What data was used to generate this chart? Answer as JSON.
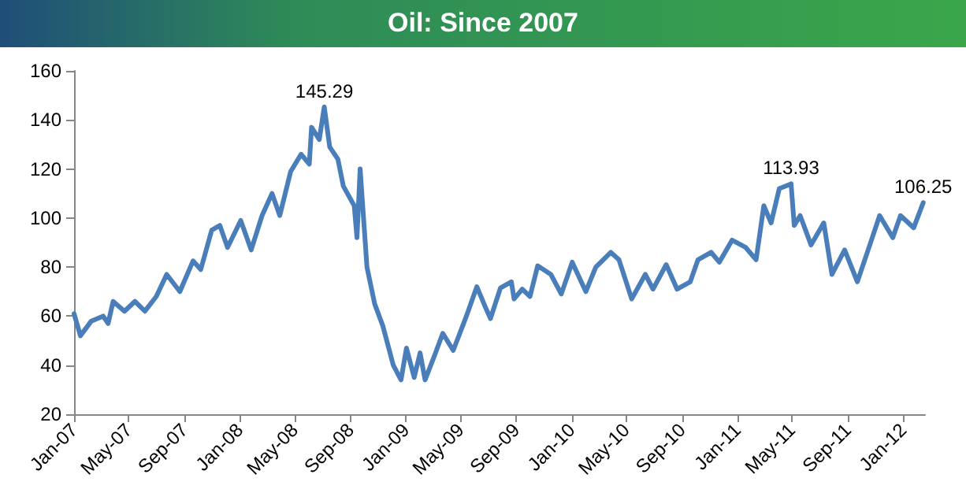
{
  "chart_data": {
    "type": "line",
    "title": "Oil: Since 2007",
    "x": [
      "2007-01-01",
      "2007-01-15",
      "2007-02-08",
      "2007-03-06",
      "2007-03-17",
      "2007-03-28",
      "2007-04-22",
      "2007-05-15",
      "2007-06-06",
      "2007-07-01",
      "2007-07-24",
      "2007-08-22",
      "2007-09-20",
      "2007-10-07",
      "2007-10-31",
      "2007-11-18",
      "2007-12-05",
      "2008-01-03",
      "2008-01-26",
      "2008-02-19",
      "2008-03-12",
      "2008-03-29",
      "2008-04-22",
      "2008-05-15",
      "2008-06-02",
      "2008-06-07",
      "2008-06-24",
      "2008-07-05",
      "2008-07-17",
      "2008-08-04",
      "2008-08-16",
      "2008-09-09",
      "2008-09-15",
      "2008-09-22",
      "2008-10-07",
      "2008-10-24",
      "2008-11-11",
      "2008-12-04",
      "2008-12-21",
      "2009-01-02",
      "2009-01-19",
      "2009-02-01",
      "2009-02-12",
      "2009-03-05",
      "2009-03-23",
      "2009-04-15",
      "2009-05-14",
      "2009-06-06",
      "2009-06-24",
      "2009-07-06",
      "2009-07-28",
      "2009-08-21",
      "2009-08-27",
      "2009-09-14",
      "2009-10-01",
      "2009-10-18",
      "2009-11-16",
      "2009-12-09",
      "2010-01-02",
      "2010-02-01",
      "2010-02-23",
      "2010-03-28",
      "2010-04-15",
      "2010-05-13",
      "2010-06-12",
      "2010-06-29",
      "2010-07-28",
      "2010-08-21",
      "2010-09-19",
      "2010-10-06",
      "2010-11-04",
      "2010-11-22",
      "2010-12-20",
      "2011-01-19",
      "2011-02-11",
      "2011-02-28",
      "2011-03-16",
      "2011-04-03",
      "2011-04-29",
      "2011-05-06",
      "2011-05-19",
      "2011-06-12",
      "2011-07-10",
      "2011-07-28",
      "2011-08-25",
      "2011-09-22",
      "2011-10-23",
      "2011-11-10",
      "2011-12-09",
      "2011-12-26",
      "2012-01-24",
      "2012-02-14"
    ],
    "series": [
      {
        "color": "#4a7ebb",
        "values": [
          61,
          52,
          58,
          60,
          57,
          66,
          62,
          66,
          62,
          68,
          77,
          70,
          82.5,
          79,
          95,
          97,
          88,
          99,
          87,
          101,
          110,
          101,
          119,
          126,
          122,
          137,
          132,
          145.29,
          129,
          124,
          113,
          105,
          92,
          120,
          80,
          65,
          56,
          40,
          34,
          47,
          35,
          45,
          34,
          44,
          53,
          46,
          60,
          72,
          64,
          59,
          71.5,
          74,
          67,
          71,
          68,
          80.5,
          77,
          69,
          82,
          70,
          80,
          86,
          83,
          67,
          77,
          71,
          81,
          71,
          74,
          83,
          86,
          82,
          91,
          88,
          83,
          105,
          98,
          112,
          113.93,
          97,
          101,
          89,
          98,
          77,
          87,
          74,
          91,
          101,
          92,
          101,
          96,
          106.25
        ]
      }
    ],
    "annotations": [
      {
        "text": "145.29",
        "x": "2008-07-05",
        "y": 145.29
      },
      {
        "text": "113.93",
        "x": "2011-04-29",
        "y": 113.93
      },
      {
        "text": "106.25",
        "x": "2012-02-14",
        "y": 106.25
      }
    ],
    "xlim": [
      "2007-01-01",
      "2012-02-18"
    ],
    "xticks": [
      {
        "value": "2007-01-01",
        "label": "Jan-07"
      },
      {
        "value": "2007-05-01",
        "label": "May-07"
      },
      {
        "value": "2007-09-01",
        "label": "Sep-07"
      },
      {
        "value": "2008-01-01",
        "label": "Jan-08"
      },
      {
        "value": "2008-05-01",
        "label": "May-08"
      },
      {
        "value": "2008-09-01",
        "label": "Sep-08"
      },
      {
        "value": "2009-01-01",
        "label": "Jan-09"
      },
      {
        "value": "2009-05-01",
        "label": "May-09"
      },
      {
        "value": "2009-09-01",
        "label": "Sep-09"
      },
      {
        "value": "2010-01-01",
        "label": "Jan-10"
      },
      {
        "value": "2010-05-01",
        "label": "May-10"
      },
      {
        "value": "2010-09-01",
        "label": "Sep-10"
      },
      {
        "value": "2011-01-01",
        "label": "Jan-11"
      },
      {
        "value": "2011-05-01",
        "label": "May-11"
      },
      {
        "value": "2011-09-01",
        "label": "Sep-11"
      },
      {
        "value": "2012-01-01",
        "label": "Jan-12"
      }
    ],
    "ylim": [
      20,
      160
    ],
    "yticks": [
      20,
      40,
      60,
      80,
      100,
      120,
      140,
      160
    ],
    "grid": false,
    "marker": "none",
    "line_style": "solid"
  }
}
